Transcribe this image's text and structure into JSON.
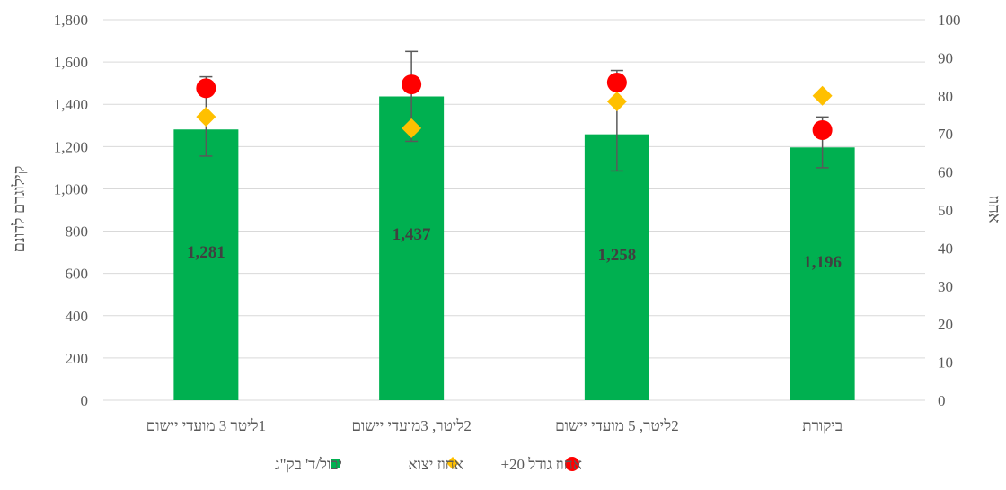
{
  "chart_data": {
    "type": "bar",
    "categories": [
      "1ליטר 3 מועדי יישום",
      "2ליטר, 3מועדי יישום",
      "2ליטר, 5 מועדי יישום",
      "ביקורת"
    ],
    "series": [
      {
        "name": "יבול/ד' בק\"ג",
        "kind": "bar",
        "axis": "left",
        "color": "#00B050",
        "values": [
          1281,
          1437,
          1258,
          1196
        ],
        "error_low": [
          1155,
          1225,
          1085,
          1100
        ],
        "error_high": [
          1530,
          1650,
          1560,
          1340
        ],
        "data_labels": [
          "1,281",
          "1,437",
          "1,258",
          "1,196"
        ]
      },
      {
        "name": "אחוז יצוא",
        "kind": "marker-diamond",
        "axis": "right",
        "color": "#FFC000",
        "values": [
          74.5,
          71.5,
          78.5,
          80
        ]
      },
      {
        "name": "אחוז גודל 20+",
        "kind": "marker-circle",
        "axis": "right",
        "color": "#FF0000",
        "values": [
          82,
          83,
          83.5,
          71
        ]
      }
    ],
    "y_left": {
      "label": "קילוגרם לדונם",
      "lim": [
        0,
        1800
      ],
      "ticks": [
        "0",
        "200",
        "400",
        "600",
        "800",
        "1,000",
        "1,200",
        "1,400",
        "1,600",
        "1,800"
      ]
    },
    "y_right": {
      "label": "אחוז",
      "lim": [
        0,
        100
      ],
      "ticks": [
        "0",
        "10",
        "20",
        "30",
        "40",
        "50",
        "60",
        "70",
        "80",
        "90",
        "100"
      ]
    },
    "grid": true,
    "legend": {
      "position": "bottom",
      "items": [
        "אחוז גודל 20+",
        "אחוז יצוא",
        "יבול/ד' בק\"ג"
      ]
    }
  }
}
